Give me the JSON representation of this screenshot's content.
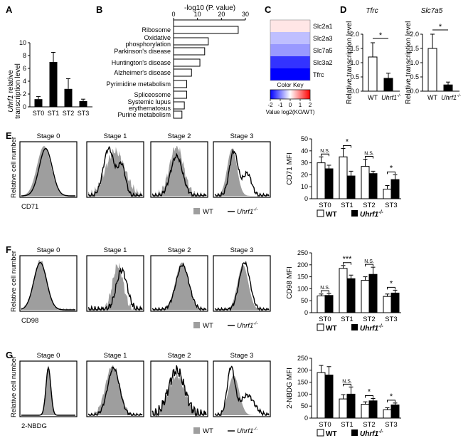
{
  "panels": {
    "A": {
      "letter": "A",
      "ylabel_italic": "Uhrf1",
      "ylabel_rest": " relative",
      "ylabel_line2": "transcription level",
      "yticks": [
        "0",
        "2",
        "4",
        "6",
        "8",
        "10"
      ]
    },
    "B": {
      "letter": "B",
      "title": "-log10 (P. value)",
      "xticks": [
        "0",
        "10",
        "20",
        "30"
      ]
    },
    "C": {
      "letter": "C",
      "genes": [
        "Slc2a1",
        "Slc2a3",
        "Slc7a5",
        "Slc3a2",
        "Tfrc"
      ],
      "color_key_title": "Color Key",
      "color_key_ticks": [
        "-2",
        "-1",
        "0",
        "1",
        "2"
      ],
      "color_key_label": "Value log2(KO/WT)"
    },
    "D": {
      "letter": "D",
      "title1": "Tfrc",
      "title2": "Slc7a5",
      "ylabel": "Relative transcription level",
      "yticks1": [
        "0.0",
        "0.5",
        "1.0",
        "1.5",
        "2.0"
      ],
      "yticks2": [
        "0.0",
        "0.5",
        "1.0",
        "1.5",
        "2.0"
      ],
      "sig": "*",
      "x_wt": "WT",
      "x_ko": "Uhrf1",
      "ko_sup": "-/-"
    },
    "E": {
      "letter": "E",
      "marker": "CD71",
      "ylabel": "CD71 MFI",
      "yticks": [
        "0",
        "10",
        "20",
        "30",
        "40",
        "50"
      ]
    },
    "F": {
      "letter": "F",
      "marker": "CD98",
      "ylabel": "CD98 MFI",
      "yticks": [
        "0",
        "50",
        "100",
        "150",
        "200",
        "250"
      ]
    },
    "G": {
      "letter": "G",
      "marker": "2-NBDG",
      "ylabel": "2-NBDG MFI",
      "yticks": [
        "0",
        "50",
        "100",
        "150",
        "200",
        "250"
      ]
    }
  },
  "flow": {
    "stages": [
      "Stage 0",
      "Stage 1",
      "Stage 2",
      "Stage 3"
    ],
    "ylabel": "Relative cell number"
  },
  "legend": {
    "wt": "WT",
    "ko": "Uhrf1",
    "ko_sup": "-/-"
  },
  "colors": {
    "ko_bar": "#000000",
    "wt_bar": "#ffffff",
    "histogram_fill": "#9e9e9e"
  },
  "chart_data": [
    {
      "id": "A",
      "type": "bar",
      "categories": [
        "ST0",
        "ST1",
        "ST2",
        "ST3"
      ],
      "values": [
        1.2,
        7.0,
        2.8,
        0.9
      ],
      "errors": [
        0.4,
        1.5,
        1.6,
        0.3
      ],
      "ylabel": "Uhrf1 relative transcription level",
      "ylim": [
        0,
        10
      ]
    },
    {
      "id": "B",
      "type": "bar",
      "orientation": "horizontal",
      "categories": [
        "Ribosome",
        "Oxidative phosphorylation",
        "Parkinson's disease",
        "Huntington's disease",
        "Alzheimer's disease",
        "Pyrimidine metabolism",
        "Spliceosome",
        "Systemic lupus erythematosus",
        "Purine metabolism"
      ],
      "values": [
        27,
        14.5,
        13,
        11,
        7.5,
        5.5,
        5.5,
        4.5,
        3.5
      ],
      "xlabel": "-log10 (P. value)",
      "xlim": [
        0,
        30
      ]
    },
    {
      "id": "C",
      "type": "heatmap",
      "rows": [
        "Slc2a1",
        "Slc2a3",
        "Slc7a5",
        "Slc3a2",
        "Tfrc"
      ],
      "values": [
        0.2,
        -0.5,
        -0.8,
        -1.6,
        -2.0
      ],
      "scale_range": [
        -2,
        2
      ]
    },
    {
      "id": "D1",
      "type": "bar",
      "title": "Tfrc",
      "categories": [
        "WT",
        "Uhrf1-/-"
      ],
      "values": [
        1.2,
        0.45
      ],
      "errors": [
        0.5,
        0.18
      ],
      "ylabel": "Relative transcription level",
      "ylim": [
        0,
        2
      ],
      "significance": "*"
    },
    {
      "id": "D2",
      "type": "bar",
      "title": "Slc7a5",
      "categories": [
        "WT",
        "Uhrf1-/-"
      ],
      "values": [
        1.5,
        0.22
      ],
      "errors": [
        0.5,
        0.1
      ],
      "ylabel": "Relative transcription level",
      "ylim": [
        0,
        2
      ],
      "significance": "*"
    },
    {
      "id": "E",
      "type": "bar",
      "ylabel": "CD71 MFI",
      "ylim": [
        0,
        50
      ],
      "categories": [
        "ST0",
        "ST1",
        "ST2",
        "ST3"
      ],
      "series": [
        {
          "name": "WT",
          "values": [
            30,
            35,
            27,
            8
          ],
          "errors": [
            5,
            7,
            6,
            3
          ]
        },
        {
          "name": "Uhrf1-/-",
          "values": [
            25,
            19,
            21,
            16
          ],
          "errors": [
            3,
            4,
            2,
            4
          ]
        }
      ],
      "significance": [
        "N.S.",
        "*",
        "N.S.",
        "*"
      ]
    },
    {
      "id": "F",
      "type": "bar",
      "ylabel": "CD98 MFI",
      "ylim": [
        0,
        250
      ],
      "categories": [
        "ST0",
        "ST1",
        "ST2",
        "ST3"
      ],
      "series": [
        {
          "name": "WT",
          "values": [
            70,
            185,
            135,
            68
          ],
          "errors": [
            8,
            12,
            15,
            10
          ]
        },
        {
          "name": "Uhrf1-/-",
          "values": [
            72,
            142,
            160,
            82
          ],
          "errors": [
            8,
            15,
            30,
            12
          ]
        }
      ],
      "significance": [
        "N.S.",
        "***",
        "N.S.",
        "*"
      ]
    },
    {
      "id": "G",
      "type": "bar",
      "ylabel": "2-NBDG MFI",
      "ylim": [
        0,
        250
      ],
      "categories": [
        "ST0",
        "ST1",
        "ST2",
        "ST3"
      ],
      "series": [
        {
          "name": "WT",
          "values": [
            190,
            80,
            58,
            35
          ],
          "errors": [
            30,
            18,
            10,
            8
          ]
        },
        {
          "name": "Uhrf1-/-",
          "values": [
            180,
            100,
            72,
            55
          ],
          "errors": [
            35,
            30,
            10,
            8
          ]
        }
      ],
      "significance": [
        "",
        "N.S.",
        "*",
        "*"
      ]
    }
  ]
}
